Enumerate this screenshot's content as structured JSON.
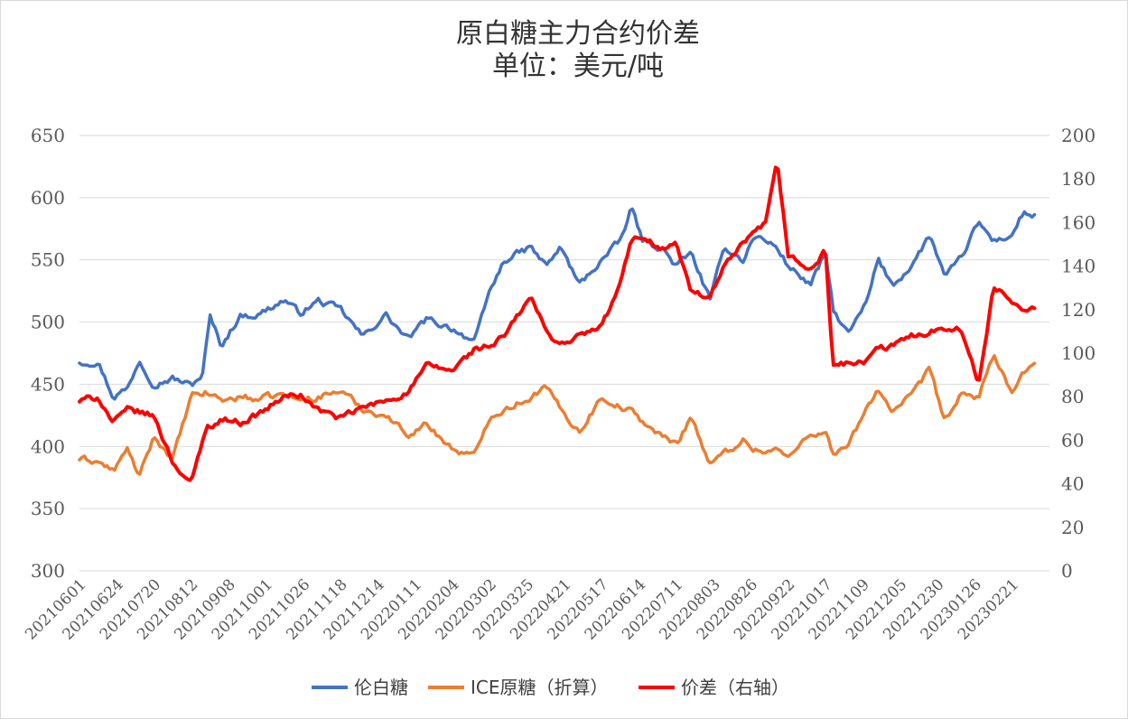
{
  "chart_data": {
    "type": "line",
    "title": "原白糖主力合约价差",
    "subtitle": "单位：美元/吨",
    "x_tick_labels": [
      "20210601",
      "20210624",
      "20210720",
      "20210812",
      "20210908",
      "20211001",
      "20211026",
      "20211118",
      "20211214",
      "20220111",
      "20220204",
      "20220302",
      "20220325",
      "20220421",
      "20220517",
      "20220614",
      "20220711",
      "20220803",
      "20220826",
      "20220922",
      "20221017",
      "20221109",
      "20221205",
      "20221230",
      "20230126",
      "20230221"
    ],
    "y_left": {
      "min": 300,
      "max": 650,
      "step": 50,
      "ticks": [
        "300",
        "350",
        "400",
        "450",
        "500",
        "550",
        "600",
        "650"
      ]
    },
    "y_right": {
      "min": 0,
      "max": 200,
      "step": 20,
      "ticks": [
        "0",
        "20",
        "40",
        "60",
        "80",
        "100",
        "120",
        "140",
        "160",
        "180",
        "200"
      ]
    },
    "grid": true,
    "legend_position": "bottom",
    "series": [
      {
        "name": "伦白糖",
        "axis": "left",
        "color": "#4472C4",
        "anchors": [
          [
            0,
            468
          ],
          [
            0.5,
            468
          ],
          [
            0.9,
            440
          ],
          [
            1.3,
            447
          ],
          [
            1.6,
            470
          ],
          [
            2.0,
            450
          ],
          [
            2.5,
            455
          ],
          [
            3.0,
            449
          ],
          [
            3.3,
            458
          ],
          [
            3.5,
            504
          ],
          [
            3.8,
            481
          ],
          [
            4.3,
            505
          ],
          [
            4.8,
            506
          ],
          [
            5.5,
            518
          ],
          [
            5.9,
            507
          ],
          [
            6.4,
            517
          ],
          [
            7.0,
            510
          ],
          [
            7.6,
            488
          ],
          [
            8.2,
            506
          ],
          [
            8.8,
            486
          ],
          [
            9.3,
            502
          ],
          [
            10.0,
            495
          ],
          [
            10.6,
            484
          ],
          [
            11.0,
            525
          ],
          [
            11.4,
            550
          ],
          [
            12.1,
            560
          ],
          [
            12.5,
            545
          ],
          [
            12.9,
            560
          ],
          [
            13.4,
            530
          ],
          [
            14.0,
            550
          ],
          [
            14.5,
            565
          ],
          [
            14.8,
            592
          ],
          [
            15.1,
            565
          ],
          [
            15.6,
            560
          ],
          [
            16.0,
            545
          ],
          [
            16.4,
            555
          ],
          [
            16.9,
            518
          ],
          [
            17.3,
            560
          ],
          [
            17.8,
            550
          ],
          [
            18.1,
            570
          ],
          [
            18.4,
            565
          ],
          [
            18.7,
            560
          ],
          [
            19.0,
            545
          ],
          [
            19.6,
            530
          ],
          [
            20.0,
            555
          ],
          [
            20.2,
            510
          ],
          [
            20.6,
            490
          ],
          [
            21.1,
            515
          ],
          [
            21.4,
            550
          ],
          [
            21.8,
            530
          ],
          [
            22.3,
            545
          ],
          [
            22.8,
            570
          ],
          [
            23.2,
            535
          ],
          [
            23.6,
            550
          ],
          [
            24.1,
            580
          ],
          [
            24.5,
            565
          ],
          [
            25.0,
            570
          ],
          [
            25.3,
            588
          ],
          [
            25.6,
            585
          ]
        ]
      },
      {
        "name": "ICE原糖（折算）",
        "axis": "left",
        "color": "#ED7D31",
        "anchors": [
          [
            0,
            390
          ],
          [
            0.5,
            388
          ],
          [
            0.9,
            380
          ],
          [
            1.3,
            398
          ],
          [
            1.6,
            375
          ],
          [
            2.0,
            408
          ],
          [
            2.5,
            390
          ],
          [
            3.0,
            440
          ],
          [
            3.4,
            443
          ],
          [
            3.9,
            437
          ],
          [
            4.3,
            440
          ],
          [
            4.8,
            438
          ],
          [
            5.5,
            442
          ],
          [
            5.9,
            437
          ],
          [
            6.4,
            440
          ],
          [
            7.0,
            445
          ],
          [
            7.6,
            430
          ],
          [
            8.2,
            425
          ],
          [
            8.8,
            410
          ],
          [
            9.3,
            418
          ],
          [
            10.0,
            398
          ],
          [
            10.6,
            392
          ],
          [
            11.0,
            425
          ],
          [
            11.4,
            430
          ],
          [
            12.1,
            440
          ],
          [
            12.5,
            448
          ],
          [
            12.9,
            430
          ],
          [
            13.4,
            412
          ],
          [
            14.0,
            440
          ],
          [
            14.5,
            432
          ],
          [
            14.8,
            428
          ],
          [
            15.1,
            420
          ],
          [
            15.6,
            408
          ],
          [
            16.0,
            402
          ],
          [
            16.4,
            425
          ],
          [
            16.9,
            385
          ],
          [
            17.3,
            395
          ],
          [
            17.8,
            405
          ],
          [
            18.1,
            398
          ],
          [
            18.4,
            396
          ],
          [
            18.7,
            398
          ],
          [
            19.0,
            390
          ],
          [
            19.6,
            412
          ],
          [
            20.0,
            410
          ],
          [
            20.2,
            395
          ],
          [
            20.6,
            400
          ],
          [
            21.1,
            430
          ],
          [
            21.4,
            447
          ],
          [
            21.8,
            428
          ],
          [
            22.3,
            440
          ],
          [
            22.8,
            462
          ],
          [
            23.2,
            420
          ],
          [
            23.6,
            440
          ],
          [
            24.1,
            440
          ],
          [
            24.5,
            475
          ],
          [
            25.0,
            440
          ],
          [
            25.3,
            460
          ],
          [
            25.6,
            463
          ]
        ]
      },
      {
        "name": "价差（右轴）",
        "axis": "right",
        "color": "#FF0000",
        "anchors": [
          [
            0,
            78
          ],
          [
            0.5,
            80
          ],
          [
            0.9,
            68
          ],
          [
            1.3,
            74
          ],
          [
            1.6,
            73
          ],
          [
            2.0,
            71
          ],
          [
            2.5,
            50
          ],
          [
            3.0,
            40
          ],
          [
            3.4,
            66
          ],
          [
            3.9,
            70
          ],
          [
            4.3,
            68
          ],
          [
            4.8,
            72
          ],
          [
            5.5,
            80
          ],
          [
            5.9,
            81
          ],
          [
            6.4,
            74
          ],
          [
            7.0,
            70
          ],
          [
            7.6,
            75
          ],
          [
            8.2,
            78
          ],
          [
            8.8,
            82
          ],
          [
            9.3,
            94
          ],
          [
            10.0,
            92
          ],
          [
            10.6,
            102
          ],
          [
            11.0,
            103
          ],
          [
            11.4,
            108
          ],
          [
            12.1,
            126
          ],
          [
            12.5,
            110
          ],
          [
            12.9,
            104
          ],
          [
            13.4,
            108
          ],
          [
            14.0,
            112
          ],
          [
            14.5,
            132
          ],
          [
            14.8,
            152
          ],
          [
            15.1,
            154
          ],
          [
            15.6,
            148
          ],
          [
            16.0,
            150
          ],
          [
            16.4,
            128
          ],
          [
            16.9,
            125
          ],
          [
            17.3,
            140
          ],
          [
            17.8,
            150
          ],
          [
            18.1,
            155
          ],
          [
            18.4,
            160
          ],
          [
            18.7,
            187
          ],
          [
            19.0,
            145
          ],
          [
            19.6,
            138
          ],
          [
            20.0,
            147
          ],
          [
            20.2,
            95
          ],
          [
            20.6,
            95
          ],
          [
            21.1,
            96
          ],
          [
            21.4,
            102
          ],
          [
            21.8,
            103
          ],
          [
            22.3,
            108
          ],
          [
            22.8,
            110
          ],
          [
            23.2,
            112
          ],
          [
            23.6,
            112
          ],
          [
            24.1,
            86
          ],
          [
            24.5,
            130
          ],
          [
            25.0,
            124
          ],
          [
            25.3,
            120
          ],
          [
            25.6,
            122
          ]
        ]
      }
    ]
  }
}
